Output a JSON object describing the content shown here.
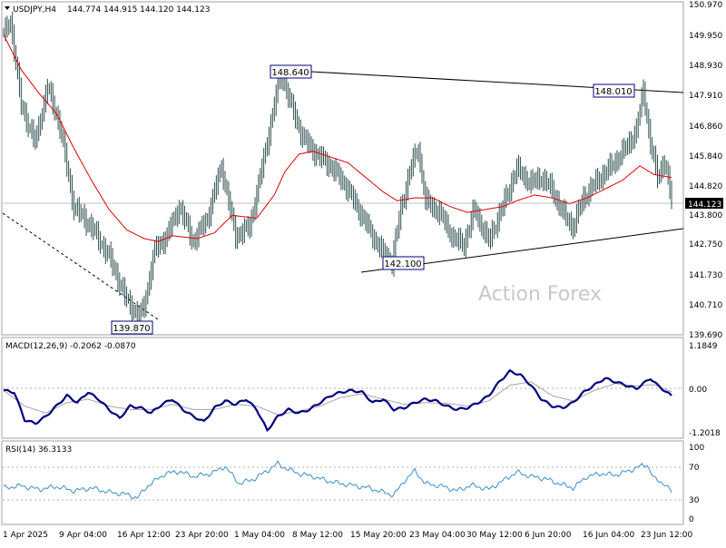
{
  "header": {
    "symbol": "USDJPY,H4",
    "ohlc": "144.774 144.915 144.120 144.123"
  },
  "price_panel": {
    "watermark": "Action Forex",
    "price_badge": "144.123",
    "y_ticks": [
      "150.970",
      "149.950",
      "148.930",
      "147.910",
      "146.860",
      "145.840",
      "144.820",
      "143.800",
      "142.750",
      "141.730",
      "140.710",
      "139.690"
    ],
    "annotations": [
      "148.640",
      "148.010",
      "142.100",
      "139.870"
    ]
  },
  "macd_panel": {
    "label": "MACD(12,26,9) -0.2062 -0.0870",
    "y_ticks": [
      "1.1849",
      "0.00",
      "-1.2018"
    ]
  },
  "rsi_panel": {
    "label": "RSI(14) 36.3133",
    "y_ticks": [
      "100",
      "70",
      "30",
      "0"
    ]
  },
  "x_axis": {
    "ticks": [
      "1 Apr 2025",
      "9 Apr 04:00",
      "16 Apr 12:00",
      "23 Apr 20:00",
      "1 May 04:00",
      "8 May 12:00",
      "15 May 20:00",
      "23 May 04:00",
      "30 May 12:00",
      "6 Jun 20:00",
      "16 Jun 04:00",
      "23 Jun 12:00"
    ]
  },
  "colors": {
    "bars": "#2f4f4f",
    "ma": "#e00000",
    "macd": "#000080",
    "signal": "#b0a0a0",
    "rsi": "#3a8fd0",
    "watermark": "#c8c8c8",
    "annotation_border": "#000080"
  },
  "chart_data": [
    {
      "type": "candlestick",
      "title": "USDJPY,H4",
      "ylim": [
        139.69,
        150.97
      ],
      "close_anchors": [
        [
          0,
          149.9
        ],
        [
          4,
          150.4
        ],
        [
          10,
          147.5
        ],
        [
          18,
          146.2
        ],
        [
          25,
          148.1
        ],
        [
          32,
          146.8
        ],
        [
          40,
          144.0
        ],
        [
          50,
          143.3
        ],
        [
          60,
          142.3
        ],
        [
          70,
          140.8
        ],
        [
          77,
          140.2
        ],
        [
          80,
          140.6
        ],
        [
          86,
          142.5
        ],
        [
          93,
          143.0
        ],
        [
          100,
          144.0
        ],
        [
          108,
          142.8
        ],
        [
          116,
          143.6
        ],
        [
          124,
          145.4
        ],
        [
          132,
          143.0
        ],
        [
          140,
          143.3
        ],
        [
          148,
          145.6
        ],
        [
          154,
          147.5
        ],
        [
          158,
          148.6
        ],
        [
          163,
          147.6
        ],
        [
          170,
          146.4
        ],
        [
          178,
          145.8
        ],
        [
          186,
          145.4
        ],
        [
          194,
          144.8
        ],
        [
          202,
          143.9
        ],
        [
          210,
          143.0
        ],
        [
          216,
          142.4
        ],
        [
          221,
          142.1
        ],
        [
          226,
          143.9
        ],
        [
          232,
          145.4
        ],
        [
          236,
          146.0
        ],
        [
          240,
          144.2
        ],
        [
          248,
          143.8
        ],
        [
          256,
          142.9
        ],
        [
          262,
          142.7
        ],
        [
          268,
          143.9
        ],
        [
          276,
          142.8
        ],
        [
          284,
          144.0
        ],
        [
          292,
          145.3
        ],
        [
          300,
          144.8
        ],
        [
          306,
          145.0
        ],
        [
          312,
          144.6
        ],
        [
          318,
          143.8
        ],
        [
          324,
          143.3
        ],
        [
          330,
          144.3
        ],
        [
          338,
          144.9
        ],
        [
          346,
          145.4
        ],
        [
          354,
          146.0
        ],
        [
          360,
          146.6
        ],
        [
          364,
          148.0
        ],
        [
          368,
          146.2
        ],
        [
          372,
          145.0
        ],
        [
          376,
          145.6
        ],
        [
          380,
          144.2
        ]
      ],
      "moving_average_anchors": [
        [
          0,
          149.9
        ],
        [
          10,
          148.7
        ],
        [
          20,
          147.9
        ],
        [
          30,
          147.2
        ],
        [
          40,
          146.0
        ],
        [
          50,
          144.9
        ],
        [
          60,
          143.9
        ],
        [
          70,
          143.2
        ],
        [
          80,
          142.9
        ],
        [
          88,
          142.8
        ],
        [
          96,
          143.0
        ],
        [
          110,
          142.9
        ],
        [
          120,
          143.1
        ],
        [
          130,
          143.7
        ],
        [
          144,
          143.6
        ],
        [
          154,
          144.4
        ],
        [
          160,
          145.2
        ],
        [
          168,
          145.8
        ],
        [
          176,
          145.9
        ],
        [
          186,
          145.7
        ],
        [
          196,
          145.5
        ],
        [
          206,
          145.0
        ],
        [
          216,
          144.5
        ],
        [
          224,
          144.2
        ],
        [
          234,
          144.3
        ],
        [
          244,
          144.3
        ],
        [
          254,
          144.0
        ],
        [
          264,
          143.8
        ],
        [
          274,
          143.9
        ],
        [
          284,
          144.0
        ],
        [
          292,
          144.2
        ],
        [
          302,
          144.4
        ],
        [
          312,
          144.3
        ],
        [
          322,
          144.1
        ],
        [
          332,
          144.3
        ],
        [
          342,
          144.6
        ],
        [
          352,
          144.9
        ],
        [
          362,
          145.4
        ],
        [
          370,
          145.1
        ],
        [
          380,
          145.0
        ]
      ],
      "annotations": [
        {
          "label": "148.640",
          "value": 148.64
        },
        {
          "label": "148.010",
          "value": 148.01
        },
        {
          "label": "142.100",
          "value": 142.1
        },
        {
          "label": "139.870",
          "value": 139.87
        }
      ]
    },
    {
      "type": "line",
      "title": "MACD(12,26,9) -0.2062 -0.0870",
      "ylim": [
        -1.4,
        1.45
      ],
      "series": [
        {
          "anchors": [
            [
              0,
              -0.05
            ],
            [
              6,
              -0.1
            ],
            [
              12,
              -0.9
            ],
            [
              18,
              -1.0
            ],
            [
              24,
              -0.8
            ],
            [
              30,
              -0.5
            ],
            [
              36,
              -0.2
            ],
            [
              42,
              -0.4
            ],
            [
              48,
              -0.1
            ],
            [
              54,
              -0.3
            ],
            [
              60,
              -0.6
            ],
            [
              66,
              -0.85
            ],
            [
              72,
              -0.5
            ],
            [
              78,
              -0.55
            ],
            [
              84,
              -0.7
            ],
            [
              90,
              -0.45
            ],
            [
              96,
              -0.3
            ],
            [
              102,
              -0.6
            ],
            [
              108,
              -0.8
            ],
            [
              114,
              -0.95
            ],
            [
              120,
              -0.55
            ],
            [
              126,
              -0.35
            ],
            [
              132,
              -0.45
            ],
            [
              138,
              -0.3
            ],
            [
              144,
              -0.6
            ],
            [
              150,
              -1.2
            ],
            [
              156,
              -0.8
            ],
            [
              162,
              -0.6
            ],
            [
              168,
              -0.7
            ],
            [
              174,
              -0.6
            ],
            [
              180,
              -0.4
            ],
            [
              186,
              -0.2
            ],
            [
              192,
              -0.1
            ],
            [
              198,
              -0.05
            ],
            [
              204,
              -0.1
            ],
            [
              210,
              -0.4
            ],
            [
              216,
              -0.3
            ],
            [
              222,
              -0.6
            ],
            [
              228,
              -0.55
            ],
            [
              234,
              -0.4
            ],
            [
              240,
              -0.3
            ],
            [
              246,
              -0.35
            ],
            [
              252,
              -0.5
            ],
            [
              258,
              -0.6
            ],
            [
              264,
              -0.55
            ],
            [
              270,
              -0.4
            ],
            [
              276,
              -0.2
            ],
            [
              282,
              0.2
            ],
            [
              288,
              0.5
            ],
            [
              294,
              0.4
            ],
            [
              300,
              0.1
            ],
            [
              306,
              -0.3
            ],
            [
              312,
              -0.5
            ],
            [
              318,
              -0.55
            ],
            [
              324,
              -0.4
            ],
            [
              330,
              -0.1
            ],
            [
              336,
              0.1
            ],
            [
              342,
              0.3
            ],
            [
              348,
              0.2
            ],
            [
              354,
              0.1
            ],
            [
              360,
              0.0
            ],
            [
              364,
              0.15
            ],
            [
              368,
              0.3
            ],
            [
              372,
              0.1
            ],
            [
              376,
              -0.05
            ],
            [
              380,
              -0.21
            ]
          ]
        },
        {
          "anchors": [
            [
              0,
              -0.05
            ],
            [
              12,
              -0.5
            ],
            [
              24,
              -0.7
            ],
            [
              36,
              -0.4
            ],
            [
              48,
              -0.3
            ],
            [
              60,
              -0.5
            ],
            [
              72,
              -0.6
            ],
            [
              84,
              -0.6
            ],
            [
              96,
              -0.45
            ],
            [
              108,
              -0.6
            ],
            [
              120,
              -0.6
            ],
            [
              132,
              -0.45
            ],
            [
              144,
              -0.5
            ],
            [
              156,
              -0.75
            ],
            [
              168,
              -0.65
            ],
            [
              180,
              -0.5
            ],
            [
              192,
              -0.25
            ],
            [
              204,
              -0.15
            ],
            [
              216,
              -0.3
            ],
            [
              228,
              -0.45
            ],
            [
              240,
              -0.4
            ],
            [
              252,
              -0.42
            ],
            [
              264,
              -0.5
            ],
            [
              276,
              -0.35
            ],
            [
              288,
              0.1
            ],
            [
              300,
              0.2
            ],
            [
              312,
              -0.2
            ],
            [
              324,
              -0.35
            ],
            [
              336,
              -0.05
            ],
            [
              348,
              0.15
            ],
            [
              360,
              0.08
            ],
            [
              370,
              0.12
            ],
            [
              380,
              -0.09
            ]
          ]
        }
      ]
    },
    {
      "type": "line",
      "title": "RSI(14) 36.3133",
      "ylim": [
        0,
        100
      ],
      "series": [
        {
          "anchors": [
            [
              0,
              42
            ],
            [
              10,
              45
            ],
            [
              20,
              40
            ],
            [
              30,
              44
            ],
            [
              40,
              38
            ],
            [
              50,
              42
            ],
            [
              60,
              36
            ],
            [
              70,
              33
            ],
            [
              76,
              28
            ],
            [
              82,
              45
            ],
            [
              92,
              62
            ],
            [
              100,
              65
            ],
            [
              108,
              58
            ],
            [
              118,
              62
            ],
            [
              126,
              72
            ],
            [
              134,
              48
            ],
            [
              142,
              54
            ],
            [
              150,
              66
            ],
            [
              156,
              76
            ],
            [
              160,
              70
            ],
            [
              168,
              62
            ],
            [
              176,
              58
            ],
            [
              184,
              52
            ],
            [
              192,
              48
            ],
            [
              200,
              45
            ],
            [
              208,
              42
            ],
            [
              216,
              36
            ],
            [
              222,
              32
            ],
            [
              228,
              52
            ],
            [
              234,
              66
            ],
            [
              240,
              48
            ],
            [
              250,
              44
            ],
            [
              258,
              38
            ],
            [
              266,
              46
            ],
            [
              276,
              40
            ],
            [
              284,
              52
            ],
            [
              292,
              64
            ],
            [
              300,
              58
            ],
            [
              308,
              55
            ],
            [
              316,
              48
            ],
            [
              324,
              42
            ],
            [
              332,
              58
            ],
            [
              340,
              62
            ],
            [
              348,
              60
            ],
            [
              356,
              66
            ],
            [
              362,
              72
            ],
            [
              366,
              75
            ],
            [
              370,
              55
            ],
            [
              376,
              48
            ],
            [
              380,
              36
            ]
          ]
        }
      ]
    }
  ]
}
